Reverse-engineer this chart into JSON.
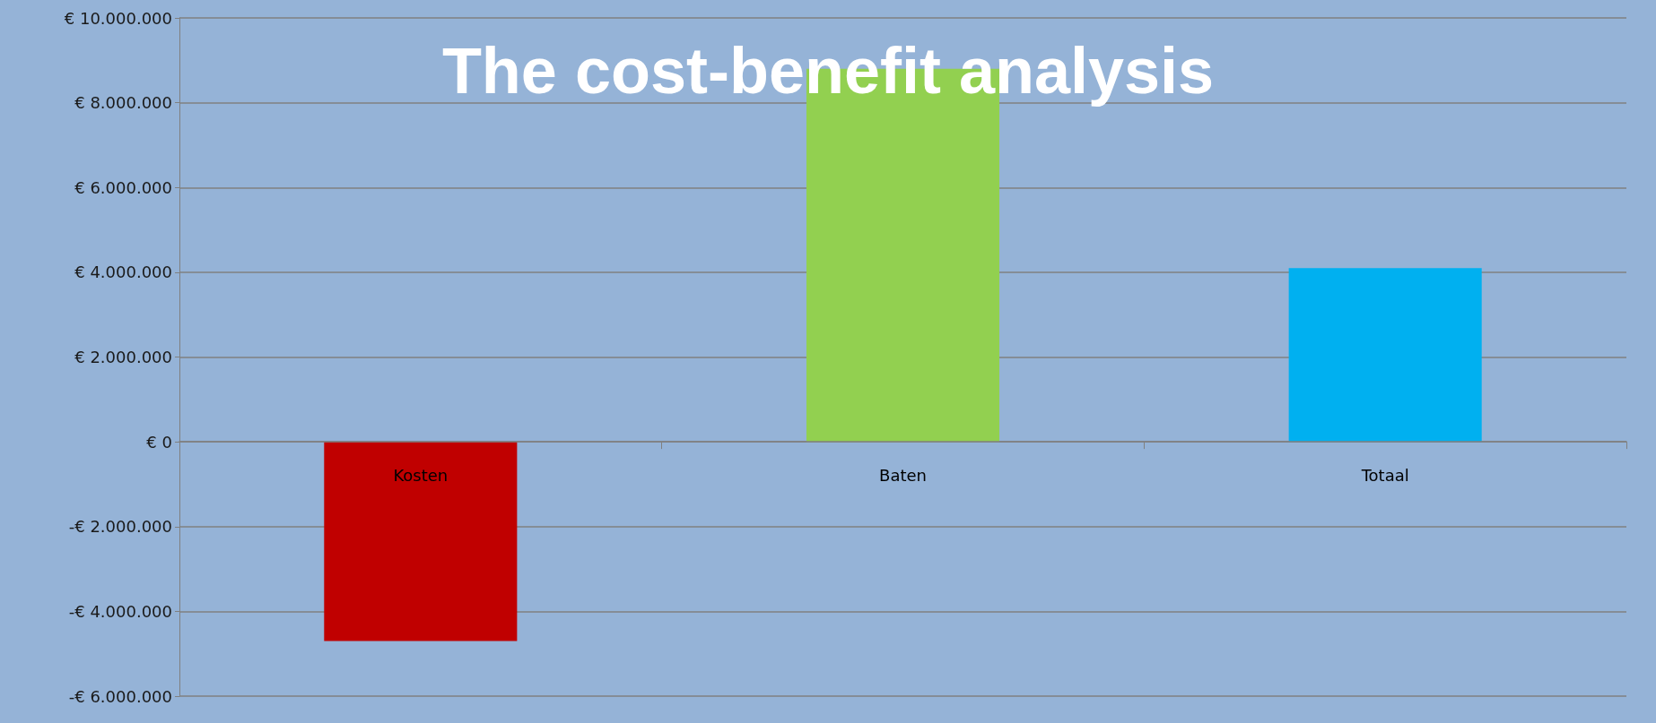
{
  "chart_data": {
    "type": "bar",
    "title": "The cost-benefit analysis",
    "categories": [
      "Kosten",
      "Baten",
      "Totaal"
    ],
    "values": [
      -4700000,
      8800000,
      4100000
    ],
    "colors": [
      "#c00000",
      "#92d050",
      "#00b0f0"
    ],
    "ylim": [
      -6000000,
      10000000
    ],
    "yticks": [
      {
        "value": -6000000,
        "label": "-€ 6.000.000"
      },
      {
        "value": -4000000,
        "label": "-€ 4.000.000"
      },
      {
        "value": -2000000,
        "label": "-€ 2.000.000"
      },
      {
        "value": 0,
        "label": "€ 0"
      },
      {
        "value": 2000000,
        "label": "€ 2.000.000"
      },
      {
        "value": 4000000,
        "label": "€ 4.000.000"
      },
      {
        "value": 6000000,
        "label": "€ 6.000.000"
      },
      {
        "value": 8000000,
        "label": "€ 8.000.000"
      },
      {
        "value": 10000000,
        "label": "€ 10.000.000"
      }
    ],
    "grid": "y"
  }
}
